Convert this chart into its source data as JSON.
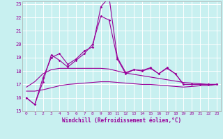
{
  "xlabel": "Windchill (Refroidissement éolien,°C)",
  "bg_color": "#c8f0f0",
  "grid_color": "#ffffff",
  "line_color": "#990099",
  "xlim": [
    -0.5,
    23.5
  ],
  "ylim": [
    15,
    23.2
  ],
  "yticks": [
    15,
    16,
    17,
    18,
    19,
    20,
    21,
    22,
    23
  ],
  "xticks": [
    0,
    1,
    2,
    3,
    4,
    5,
    6,
    7,
    8,
    9,
    10,
    11,
    12,
    13,
    14,
    15,
    16,
    17,
    18,
    19,
    20,
    21,
    22,
    23
  ],
  "hours": [
    0,
    1,
    2,
    3,
    4,
    5,
    6,
    7,
    8,
    9,
    10,
    11,
    12,
    13,
    14,
    15,
    16,
    17,
    18,
    19,
    20,
    21,
    22,
    23
  ],
  "line_marked1": [
    16.0,
    15.5,
    17.2,
    19.2,
    18.8,
    18.3,
    18.8,
    19.3,
    20.0,
    22.1,
    21.8,
    18.9,
    17.8,
    18.1,
    18.05,
    18.25,
    17.8,
    18.2,
    17.8,
    17.0,
    17.0,
    17.0,
    17.0,
    17.0
  ],
  "line_marked2": [
    16.0,
    15.5,
    17.5,
    19.0,
    19.3,
    18.5,
    18.9,
    19.5,
    19.8,
    22.8,
    23.5,
    19.0,
    17.9,
    18.1,
    18.0,
    18.2,
    17.8,
    18.25,
    17.8,
    17.0,
    17.0,
    17.0,
    17.0,
    17.0
  ],
  "line_smooth_upper": [
    16.8,
    17.2,
    17.8,
    18.1,
    18.2,
    18.2,
    18.2,
    18.2,
    18.2,
    18.2,
    18.15,
    18.0,
    17.85,
    17.75,
    17.65,
    17.55,
    17.45,
    17.35,
    17.25,
    17.15,
    17.1,
    17.05,
    17.0,
    17.0
  ],
  "line_smooth_lower": [
    16.5,
    16.5,
    16.6,
    16.75,
    16.9,
    17.0,
    17.05,
    17.1,
    17.15,
    17.2,
    17.2,
    17.15,
    17.1,
    17.05,
    17.0,
    17.0,
    16.95,
    16.9,
    16.85,
    16.8,
    16.85,
    16.9,
    16.9,
    17.0
  ]
}
